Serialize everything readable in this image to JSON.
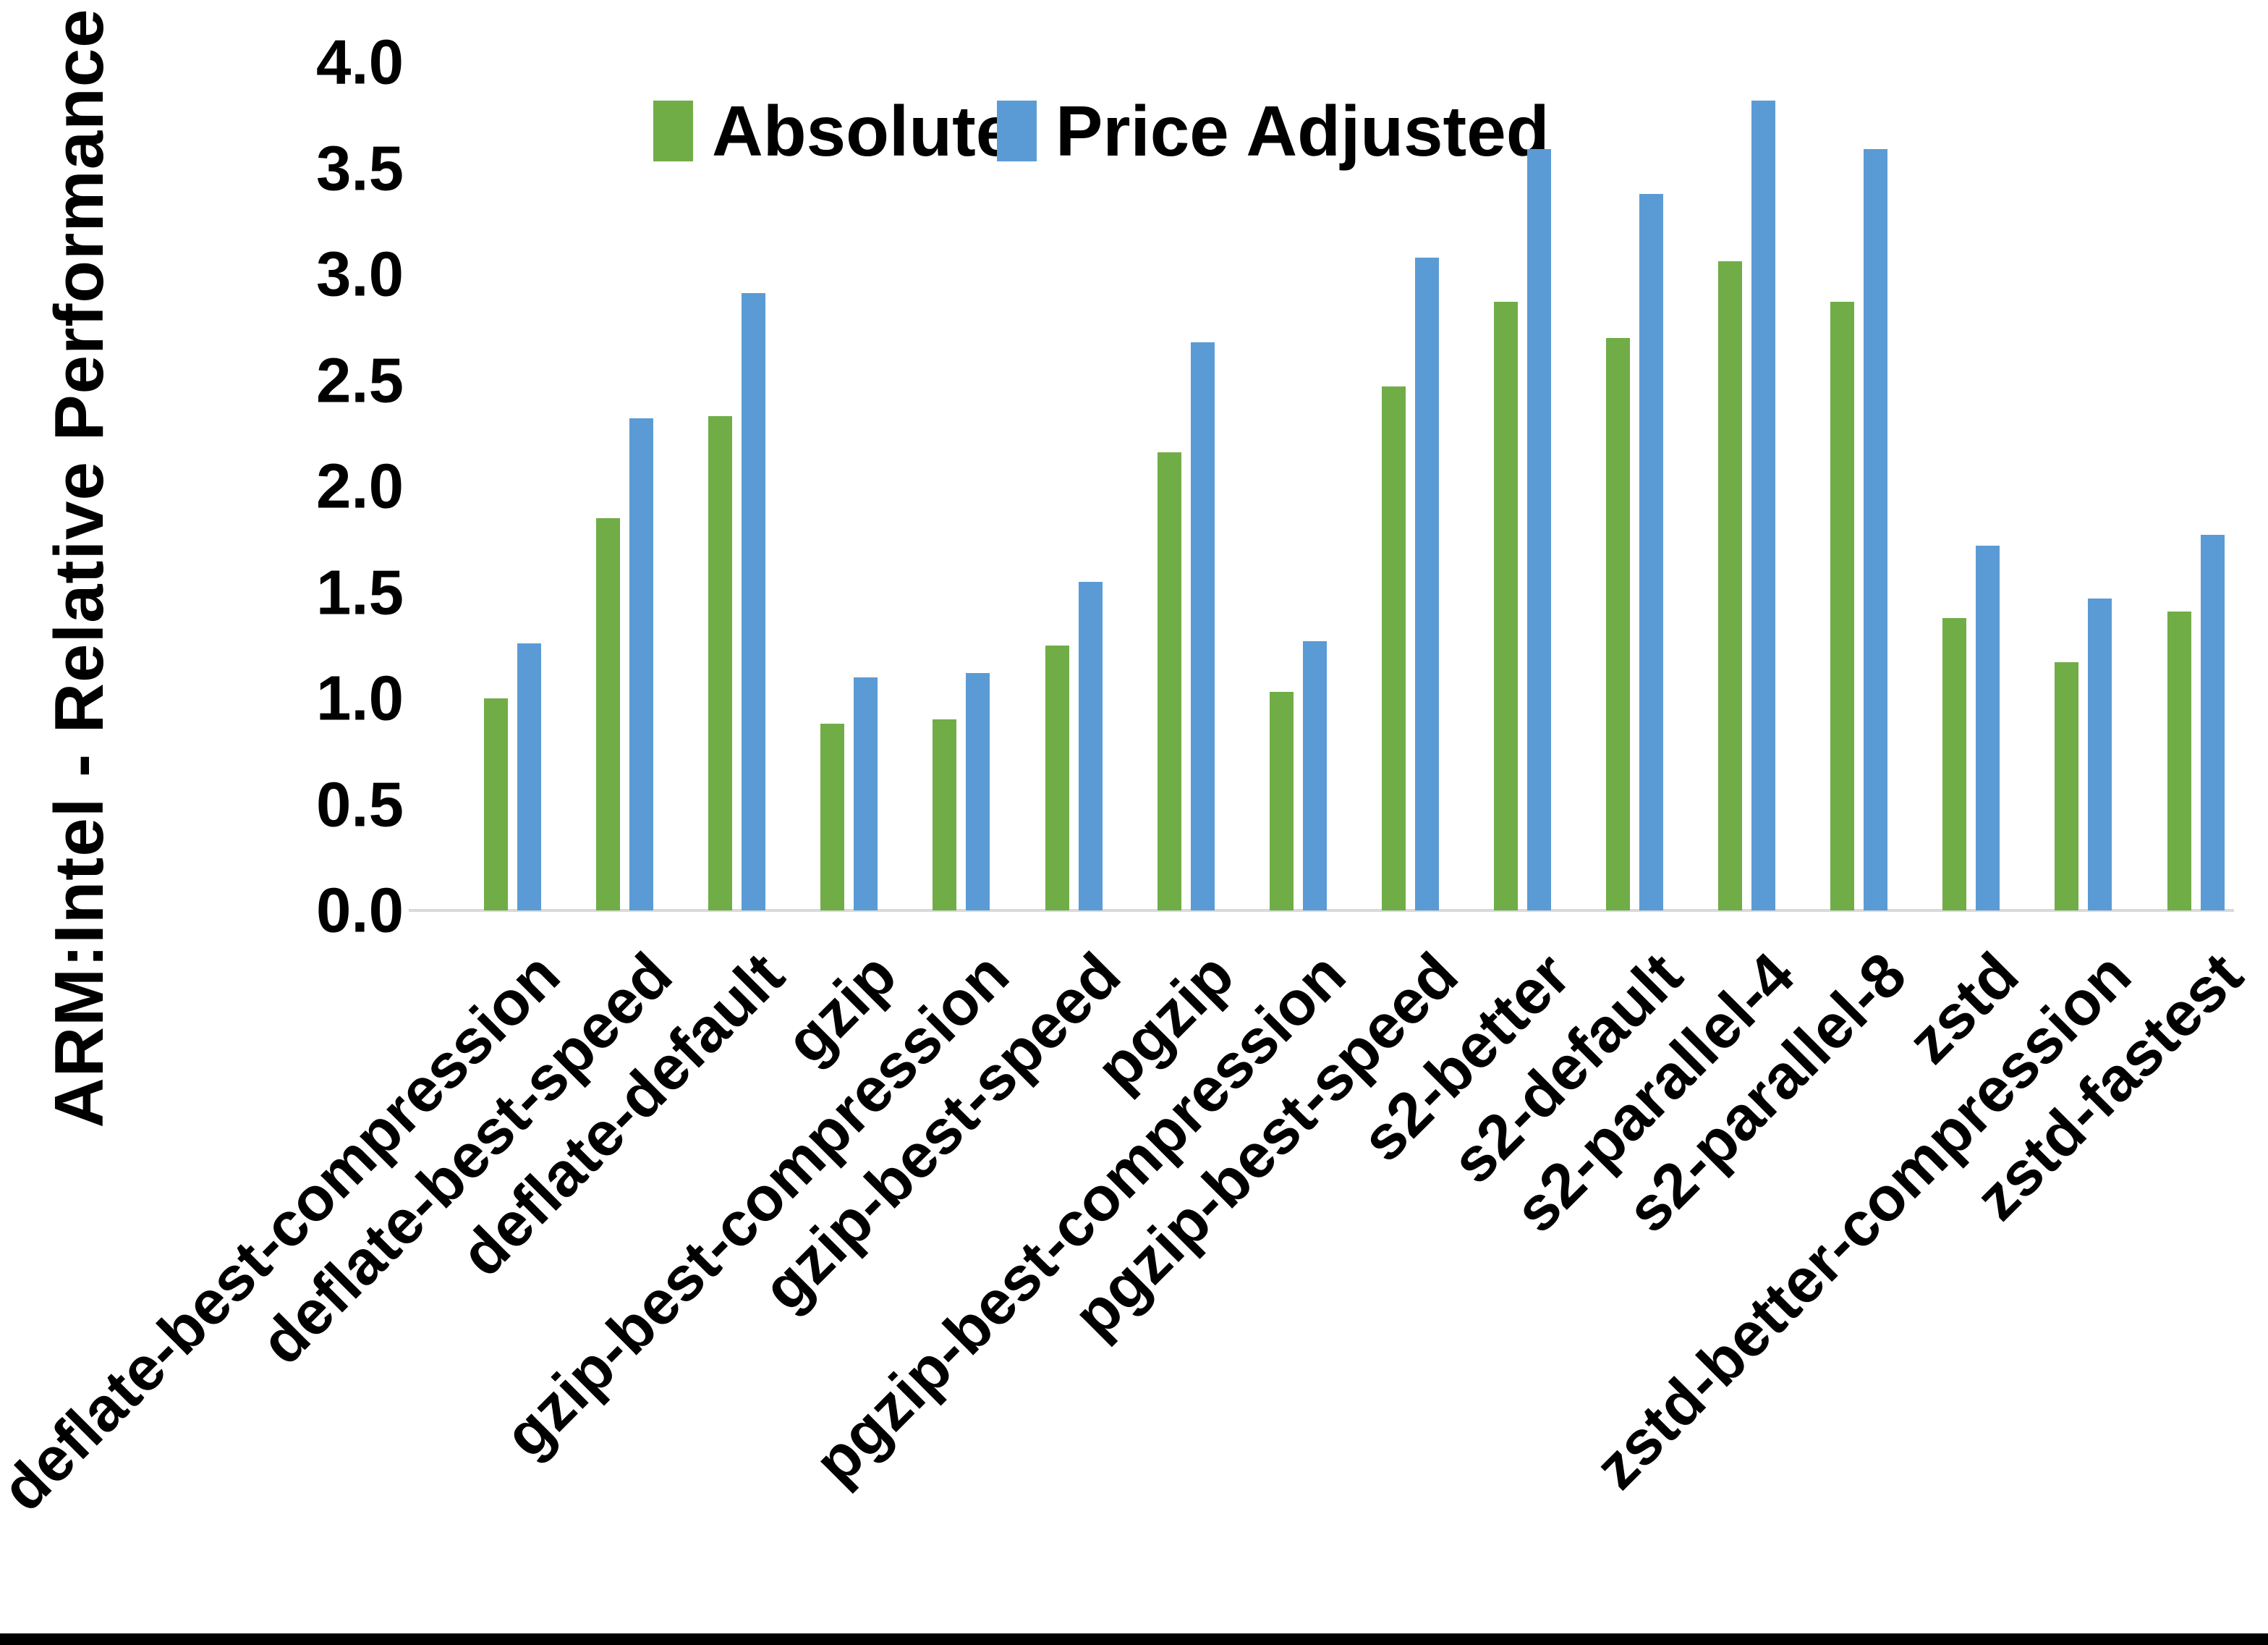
{
  "figure": {
    "background_color": "#ffffff",
    "border_bottom_color": "#000000",
    "axis_line_color": "#d9d9d9",
    "text_color": "#000000"
  },
  "chart_data": {
    "type": "bar",
    "title": "",
    "xlabel": "",
    "ylabel": "ARM:Intel - Relative Performance",
    "ylim": [
      0.0,
      4.0
    ],
    "y_ticks": [
      "4.0",
      "3.5",
      "3.0",
      "2.5",
      "2.0",
      "1.5",
      "1.0",
      "0.5",
      "0.0"
    ],
    "grid": false,
    "legend_position": "top-center",
    "x_tick_rotation_deg": 45,
    "categories": [
      "deflate-best-compression",
      "deflate-best-speed",
      "deflate-default",
      "gzip",
      "gzip-best-compression",
      "gzip-best-speed",
      "pgzip",
      "pgzip-best-compression",
      "pgzip-best-speed",
      "s2-better",
      "s2-default",
      "s2-parallel-4",
      "s2-parallel-8",
      "zstd",
      "zstd-better-compression",
      "zstd-fastest"
    ],
    "series": [
      {
        "name": "Absolute",
        "color": "#70AD47",
        "values": [
          1.0,
          1.85,
          2.33,
          0.88,
          0.9,
          1.25,
          2.16,
          1.03,
          2.47,
          2.87,
          2.7,
          3.06,
          2.87,
          1.38,
          1.17,
          1.41
        ]
      },
      {
        "name": "Price Adjusted",
        "color": "#5B9BD5",
        "values": [
          1.26,
          2.32,
          2.91,
          1.1,
          1.12,
          1.55,
          2.68,
          1.27,
          3.08,
          3.59,
          3.38,
          3.82,
          3.59,
          1.72,
          1.47,
          1.77
        ]
      }
    ]
  }
}
